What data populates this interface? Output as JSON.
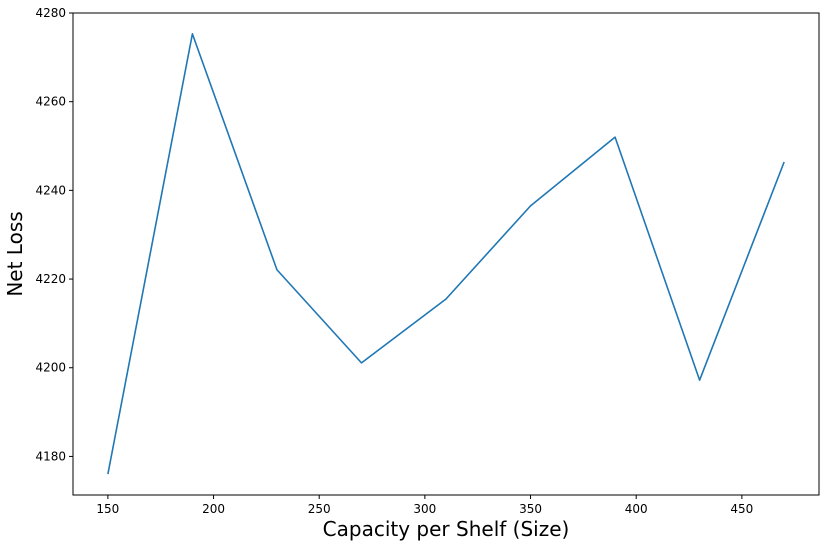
{
  "chart_data": {
    "type": "line",
    "title": "",
    "xlabel": "Capacity per Shelf (Size)",
    "ylabel": "Net Loss",
    "xlim": [
      133.5,
      486.5
    ],
    "ylim": [
      4171.3,
      4280.0
    ],
    "xticks": [
      150,
      200,
      250,
      300,
      350,
      400,
      450
    ],
    "yticks": [
      4180,
      4200,
      4220,
      4240,
      4260,
      4280
    ],
    "grid": false,
    "legend": "none",
    "series": [
      {
        "color": "#1f77b4",
        "x": [
          150,
          190,
          230,
          270,
          310,
          350,
          390,
          430,
          470
        ],
        "y": [
          4176.0,
          4275.3,
          4222.1,
          4201.1,
          4215.5,
          4236.5,
          4252.0,
          4197.2,
          4246.4
        ]
      }
    ]
  }
}
